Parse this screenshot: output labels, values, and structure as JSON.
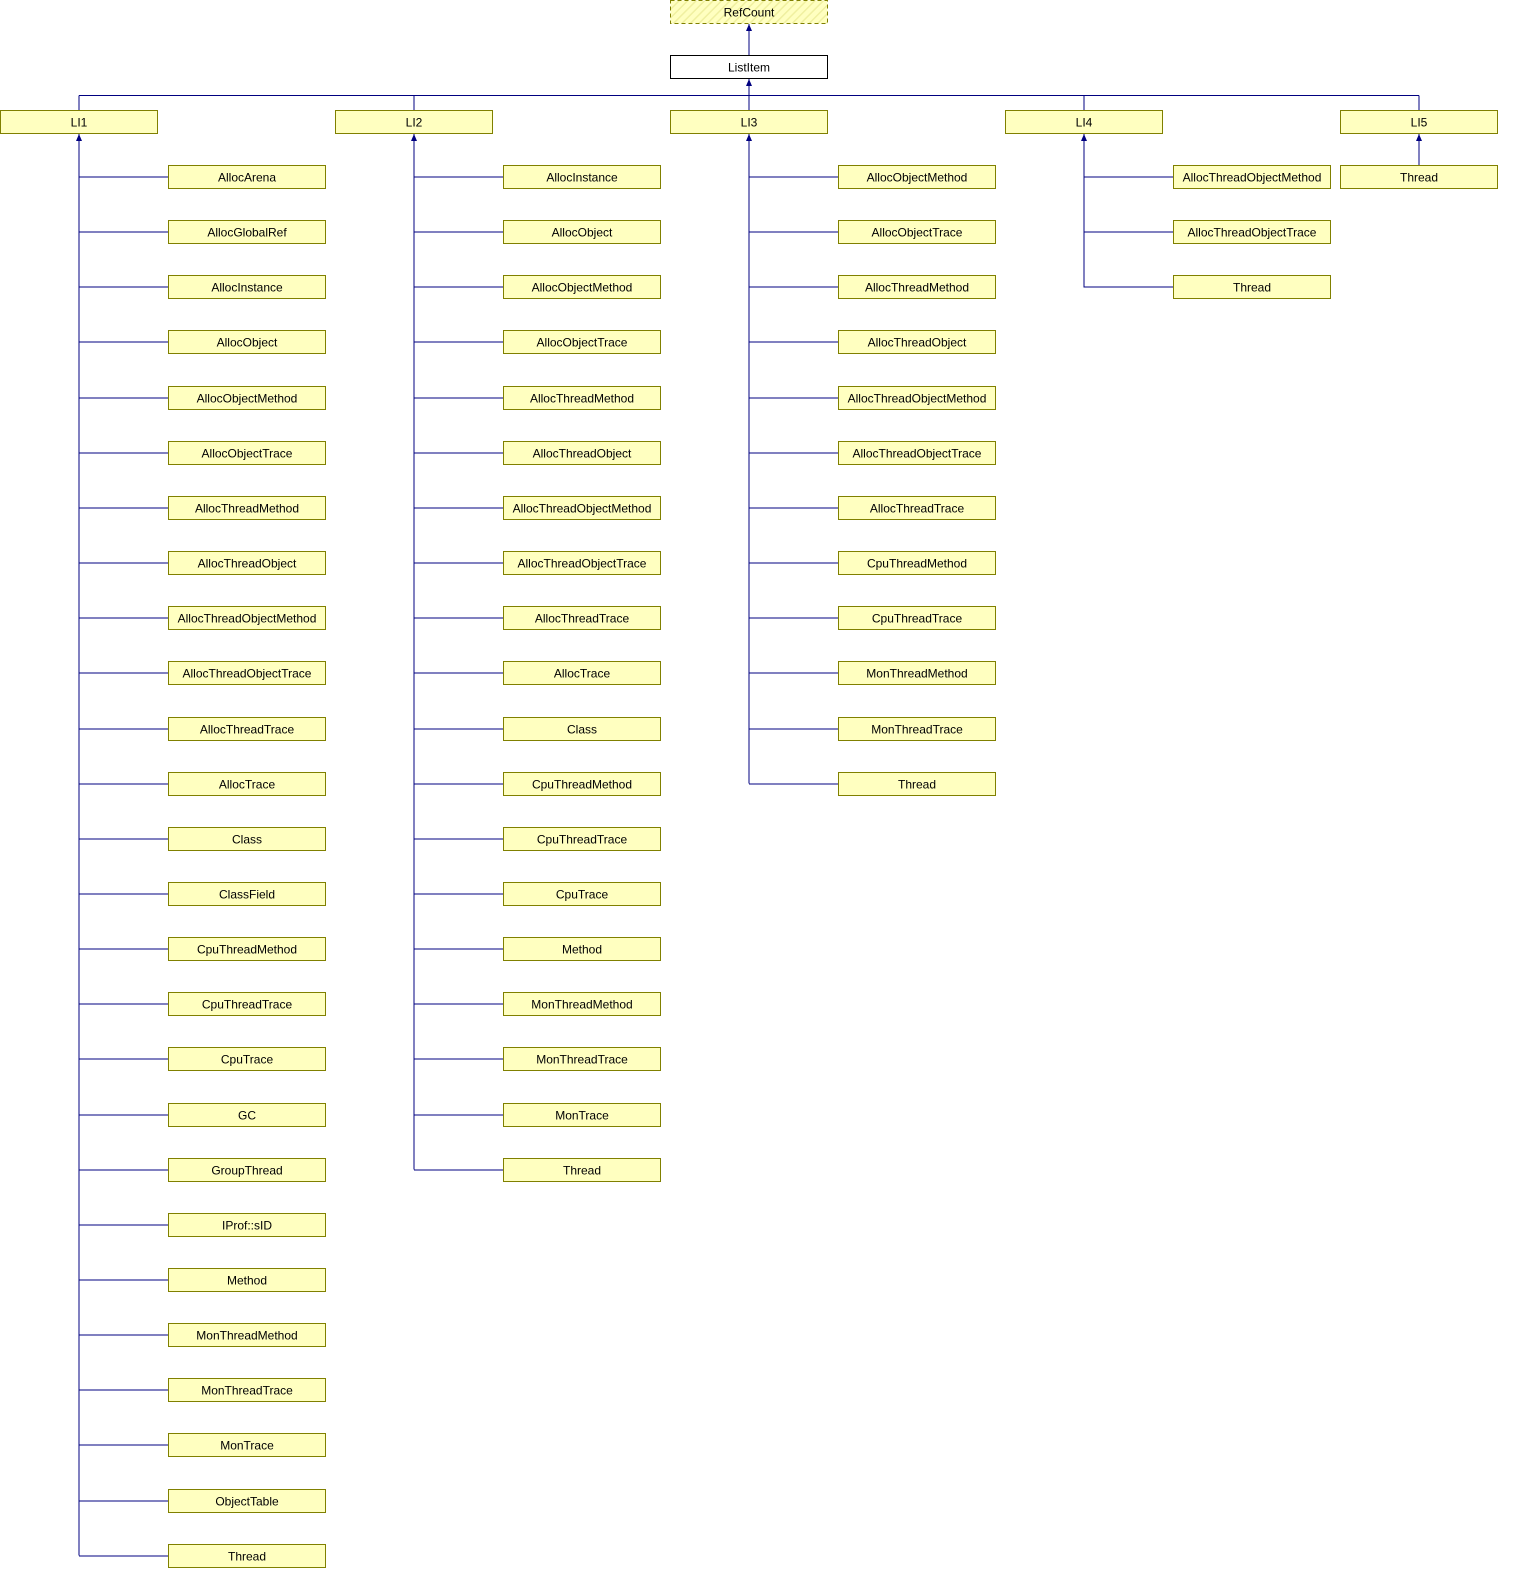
{
  "root": {
    "label": "RefCount"
  },
  "base": {
    "label": "ListItem"
  },
  "groups": [
    {
      "label": "LI1",
      "children": [
        "AllocArena",
        "AllocGlobalRef",
        "AllocInstance",
        "AllocObject",
        "AllocObjectMethod",
        "AllocObjectTrace",
        "AllocThreadMethod",
        "AllocThreadObject",
        "AllocThreadObjectMethod",
        "AllocThreadObjectTrace",
        "AllocThreadTrace",
        "AllocTrace",
        "Class",
        "ClassField",
        "CpuThreadMethod",
        "CpuThreadTrace",
        "CpuTrace",
        "GC",
        "GroupThread",
        "IProf::sID",
        "Method",
        "MonThreadMethod",
        "MonThreadTrace",
        "MonTrace",
        "ObjectTable",
        "Thread"
      ]
    },
    {
      "label": "LI2",
      "children": [
        "AllocInstance",
        "AllocObject",
        "AllocObjectMethod",
        "AllocObjectTrace",
        "AllocThreadMethod",
        "AllocThreadObject",
        "AllocThreadObjectMethod",
        "AllocThreadObjectTrace",
        "AllocThreadTrace",
        "AllocTrace",
        "Class",
        "CpuThreadMethod",
        "CpuThreadTrace",
        "CpuTrace",
        "Method",
        "MonThreadMethod",
        "MonThreadTrace",
        "MonTrace",
        "Thread"
      ]
    },
    {
      "label": "LI3",
      "children": [
        "AllocObjectMethod",
        "AllocObjectTrace",
        "AllocThreadMethod",
        "AllocThreadObject",
        "AllocThreadObjectMethod",
        "AllocThreadObjectTrace",
        "AllocThreadTrace",
        "CpuThreadMethod",
        "CpuThreadTrace",
        "MonThreadMethod",
        "MonThreadTrace",
        "Thread"
      ]
    },
    {
      "label": "LI4",
      "children": [
        "AllocThreadObjectMethod",
        "AllocThreadObjectTrace",
        "Thread"
      ]
    },
    {
      "label": "LI5",
      "children": [
        "Thread"
      ]
    }
  ]
}
